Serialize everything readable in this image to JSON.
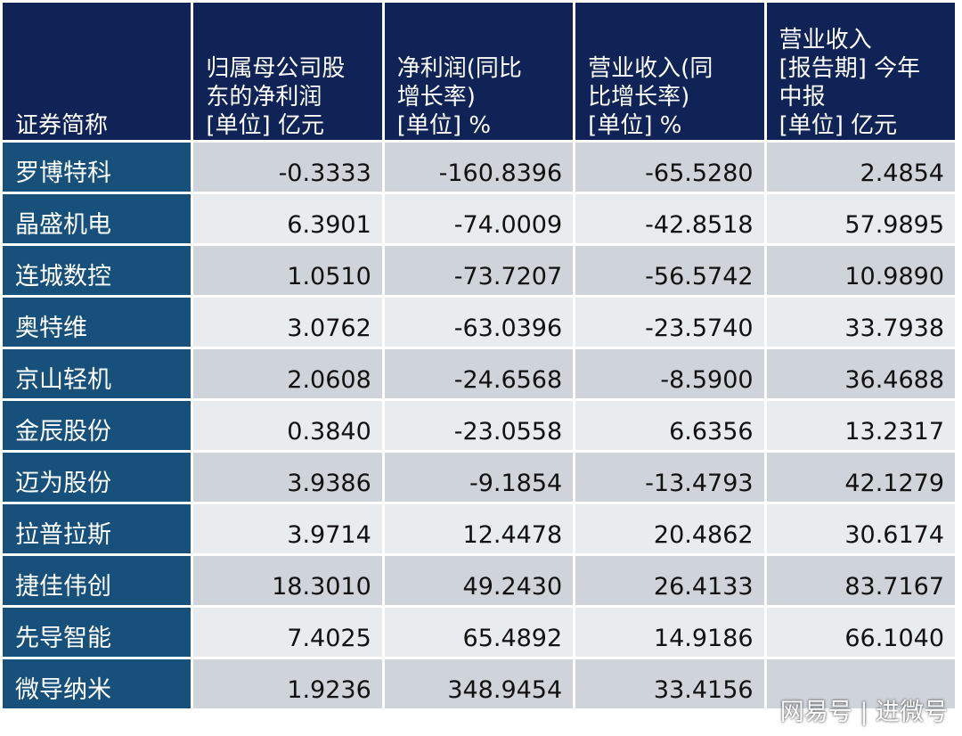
{
  "headers": [
    {
      "title": "证券简称",
      "unit": ""
    },
    {
      "title": "归属母公司股\n东的净利润",
      "unit": "[单位] 亿元"
    },
    {
      "title": "净利润(同比\n增长率)",
      "unit": "[单位] %"
    },
    {
      "title": "营业收入(同\n比增长率)",
      "unit": "[单位] %"
    },
    {
      "title": "营业收入\n[报告期] 今年\n中报",
      "unit": "[单位] 亿元"
    }
  ],
  "rows": [
    {
      "name": "罗博特科",
      "values": [
        "-0.3333",
        "-160.8396",
        "-65.5280",
        "2.4854"
      ]
    },
    {
      "name": "晶盛机电",
      "values": [
        "6.3901",
        "-74.0009",
        "-42.8518",
        "57.9895"
      ]
    },
    {
      "name": "连城数控",
      "values": [
        "1.0510",
        "-73.7207",
        "-56.5742",
        "10.9890"
      ]
    },
    {
      "name": "奥特维",
      "values": [
        "3.0762",
        "-63.0396",
        "-23.5740",
        "33.7938"
      ]
    },
    {
      "name": "京山轻机",
      "values": [
        "2.0608",
        "-24.6568",
        "-8.5900",
        "36.4688"
      ]
    },
    {
      "name": "金辰股份",
      "values": [
        "0.3840",
        "-23.0558",
        "6.6356",
        "13.2317"
      ]
    },
    {
      "name": "迈为股份",
      "values": [
        "3.9386",
        "-9.1854",
        "-13.4793",
        "42.1279"
      ]
    },
    {
      "name": "拉普拉斯",
      "values": [
        "3.9714",
        "12.4478",
        "20.4862",
        "30.6174"
      ]
    },
    {
      "name": "捷佳伟创",
      "values": [
        "18.3010",
        "49.2430",
        "26.4133",
        "83.7167"
      ]
    },
    {
      "name": "先导智能",
      "values": [
        "7.4025",
        "65.4892",
        "14.9186",
        "66.1040"
      ]
    },
    {
      "name": "微导纳米",
      "values": [
        "1.9236",
        "348.9454",
        "33.4156",
        ""
      ]
    }
  ],
  "watermark": "网易号 | 进微号",
  "colors": {
    "header_bg": "#0f2356",
    "name_bg": "#17507a",
    "row_dark": "#cfd4da",
    "row_light": "#e9ecef"
  }
}
